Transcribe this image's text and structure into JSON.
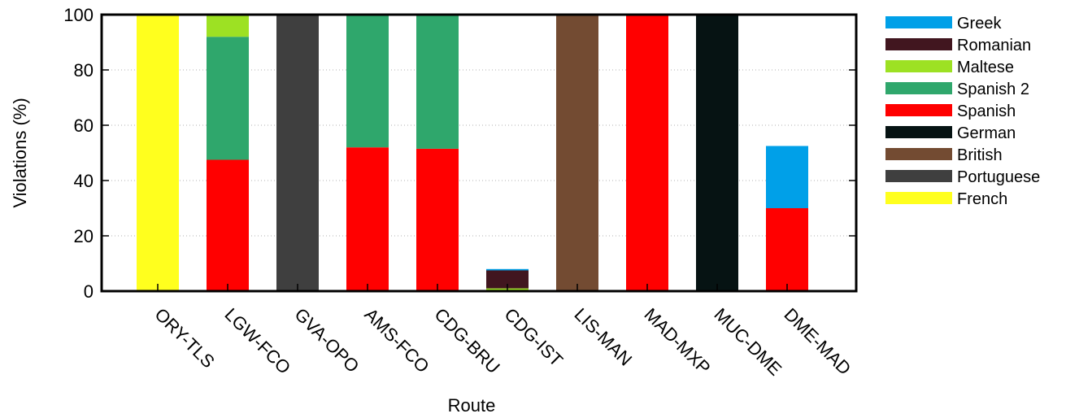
{
  "chart_data": {
    "type": "bar",
    "stacked": true,
    "xlabel": "Route",
    "ylabel": "Violations (%)",
    "ylim": [
      0,
      100
    ],
    "yticks": [
      0,
      20,
      40,
      60,
      80,
      100
    ],
    "grid": "horizontal dotted",
    "legend_position": "right",
    "categories": [
      "ORY-TLS",
      "LGW-FCO",
      "GVA-OPO",
      "AMS-FCO",
      "CDG-BRU",
      "CDG-IST",
      "LIS-MAN",
      "MAD-MXP",
      "MUC-DME",
      "DME-MAD"
    ],
    "series": [
      {
        "name": "French",
        "color": "#ffff1e",
        "values": [
          100,
          0,
          0,
          0,
          0,
          0,
          0,
          0,
          0,
          0
        ]
      },
      {
        "name": "Portuguese",
        "color": "#3f3f3f",
        "values": [
          0,
          0,
          100,
          0,
          0,
          0,
          0,
          0,
          0,
          0
        ]
      },
      {
        "name": "British",
        "color": "#734b32",
        "values": [
          0,
          0,
          0,
          0,
          0,
          0,
          100,
          0,
          0,
          0
        ]
      },
      {
        "name": "German",
        "color": "#061313",
        "values": [
          0,
          0,
          0,
          0,
          0,
          0,
          0,
          0,
          100,
          0
        ]
      },
      {
        "name": "Spanish",
        "color": "#ff0000",
        "values": [
          0,
          47.5,
          0,
          52,
          51.5,
          0,
          0,
          100,
          0,
          30
        ]
      },
      {
        "name": "Spanish 2",
        "color": "#2fa76c",
        "values": [
          0,
          44.5,
          0,
          48,
          48.5,
          0,
          0,
          0,
          0,
          0
        ]
      },
      {
        "name": "Maltese",
        "color": "#9de123",
        "values": [
          0,
          8,
          0,
          0,
          0,
          1,
          0,
          0,
          0,
          0
        ]
      },
      {
        "name": "Romanian",
        "color": "#41161f",
        "values": [
          0,
          0,
          0,
          0,
          0,
          6.5,
          0,
          0,
          0,
          0
        ]
      },
      {
        "name": "Greek",
        "color": "#00a0e8",
        "values": [
          0,
          0,
          0,
          0,
          0,
          0.5,
          0,
          0,
          0,
          22.5
        ]
      }
    ],
    "legend_order": [
      "Greek",
      "Romanian",
      "Maltese",
      "Spanish 2",
      "Spanish",
      "German",
      "British",
      "Portuguese",
      "French"
    ]
  }
}
